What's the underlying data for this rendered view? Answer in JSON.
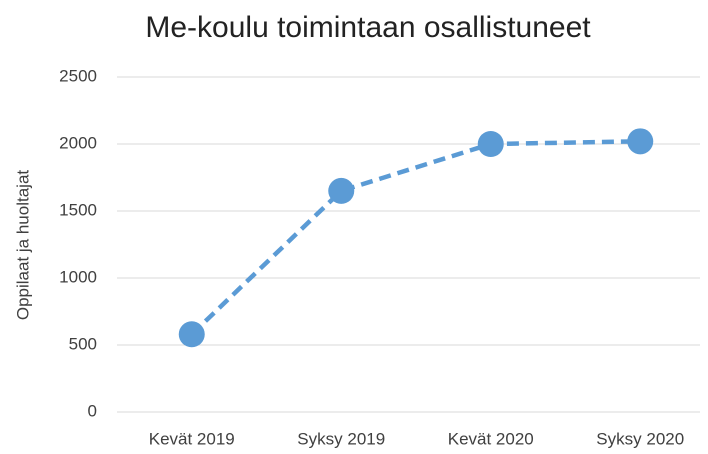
{
  "chart_data": {
    "type": "line",
    "title": "Me-koulu toimintaan osallistuneet",
    "y_label": "Oppilaat ja huoltajat",
    "categories": [
      "Kevät 2019",
      "Syksy 2019",
      "Kevät 2020",
      "Syksy 2020"
    ],
    "series": [
      {
        "name": "Oppilaat ja huoltajat",
        "color": "#5b9bd5",
        "values": [
          580,
          1650,
          2000,
          2020
        ]
      }
    ],
    "ylim": [
      0,
      2500
    ],
    "yticks": [
      0,
      500,
      1000,
      1500,
      2000,
      2500
    ],
    "grid": true,
    "dashed": true,
    "markers": true
  }
}
